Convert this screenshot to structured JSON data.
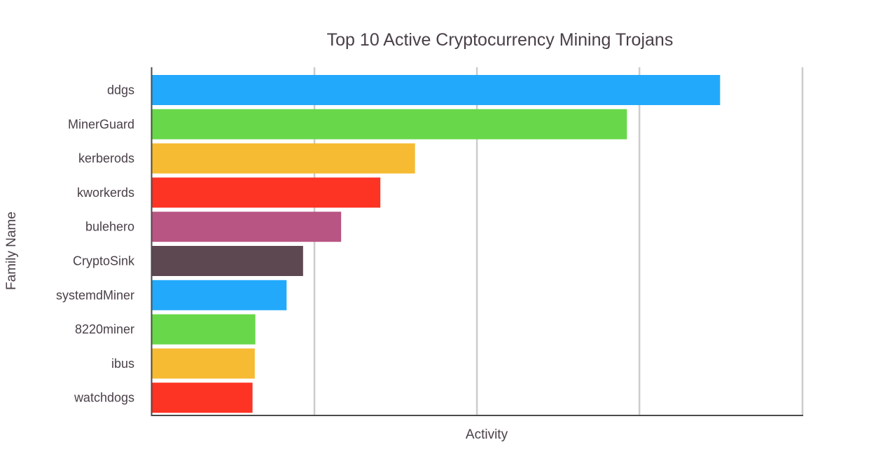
{
  "chart_data": {
    "type": "bar",
    "orientation": "horizontal",
    "title": "Top 10 Active Cryptocurrency Mining Trojans",
    "xlabel": "Activity",
    "ylabel": "Family Name",
    "categories": [
      "ddgs",
      "MinerGuard",
      "kerberods",
      "kworkerds",
      "bulehero",
      "CryptoSink",
      "systemdMiner",
      "8220miner",
      "ibus",
      "watchdogs"
    ],
    "values": [
      100,
      83.6,
      46.3,
      40.2,
      33.3,
      26.6,
      23.7,
      18.2,
      18.1,
      17.7
    ],
    "colors": [
      "#23a9fb",
      "#68d84a",
      "#f6bb33",
      "#fd3324",
      "#b85583",
      "#5d4852",
      "#23a9fb",
      "#68d84a",
      "#f6bb33",
      "#fd3324"
    ],
    "xlim": [
      0,
      114.5
    ],
    "gridlines": [
      28.6,
      57.2,
      85.8,
      114.5
    ],
    "x_tick_labels": false,
    "grid": true,
    "legend": "none"
  }
}
